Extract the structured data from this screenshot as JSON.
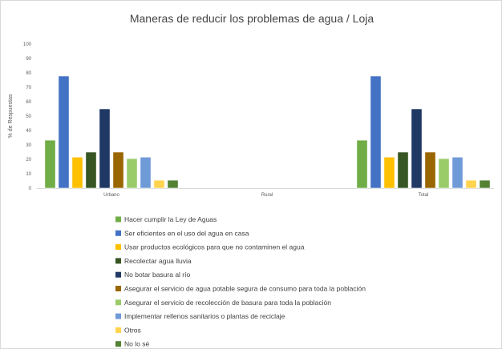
{
  "chart_data": {
    "type": "bar",
    "title": "Maneras de reducir los problemas de agua / Loja",
    "ylabel": "% de Respuestas",
    "xlabel": "",
    "ylim": [
      0,
      100
    ],
    "yticks": [
      0,
      10,
      20,
      30,
      40,
      50,
      60,
      70,
      80,
      90,
      100
    ],
    "grid": false,
    "legend_position": "bottom",
    "categories": [
      "Urbano",
      "Rural",
      "Total"
    ],
    "series": [
      {
        "name": "Hacer cumplir la Ley de Aguas",
        "color": "#70ad47",
        "values": [
          33.3,
          null,
          33.3
        ]
      },
      {
        "name": "Ser eficientes en el uso del agua en casa",
        "color": "#4472c4",
        "values": [
          77.8,
          null,
          77.8
        ]
      },
      {
        "name": "Usar productos ecológicos para que no contaminen el agua",
        "color": "#ffc000",
        "values": [
          21.5,
          null,
          21.5
        ]
      },
      {
        "name": "Recolectar agua lluvia",
        "color": "#375623",
        "values": [
          25.0,
          null,
          25.0
        ]
      },
      {
        "name": "No botar basura al río",
        "color": "#203864",
        "values": [
          55.0,
          null,
          55.0
        ]
      },
      {
        "name": "Asegurar el servicio de agua potable segura de consumo para toda la población",
        "color": "#996600",
        "values": [
          25.0,
          null,
          25.0
        ]
      },
      {
        "name": "Asegurar el servicio de recolección de basura para toda la población",
        "color": "#9bcc6a",
        "values": [
          20.5,
          null,
          20.5
        ]
      },
      {
        "name": "Implementar rellenos sanitarios o plantas de reciclaje",
        "color": "#6f9ad8",
        "values": [
          21.5,
          null,
          21.5
        ]
      },
      {
        "name": "Otros",
        "color": "#ffd34d",
        "values": [
          5.5,
          null,
          5.5
        ]
      },
      {
        "name": "No lo sé",
        "color": "#548235",
        "values": [
          5.5,
          null,
          5.5
        ]
      }
    ]
  }
}
